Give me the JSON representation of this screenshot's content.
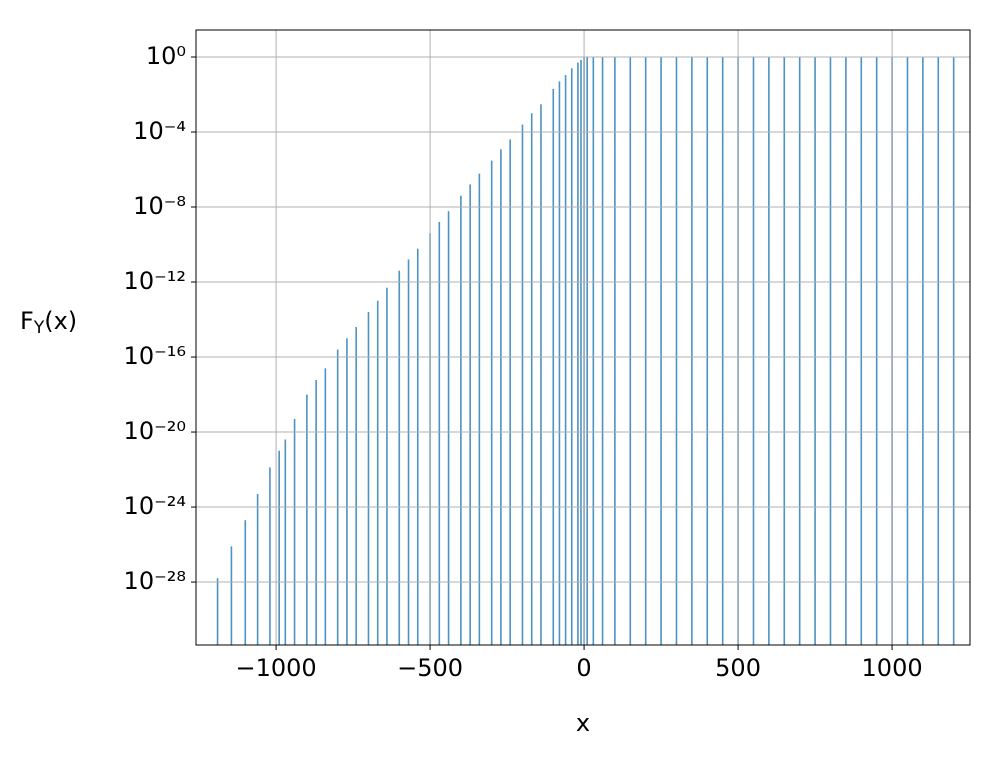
{
  "chart_data": {
    "type": "bar",
    "ylabel": {
      "base": "F",
      "sub": "Y",
      "rest": "(x)"
    },
    "xlabel": "x",
    "log_y": true,
    "grid": true,
    "color": "#1f77b4",
    "x": [
      -1190,
      -1145,
      -1100,
      -1060,
      -1020,
      -990,
      -970,
      -940,
      -900,
      -870,
      -840,
      -800,
      -770,
      -740,
      -700,
      -670,
      -640,
      -600,
      -570,
      -540,
      -500,
      -470,
      -440,
      -400,
      -370,
      -340,
      -300,
      -270,
      -240,
      -200,
      -170,
      -140,
      -100,
      -80,
      -60,
      -40,
      -20,
      -10,
      0,
      10,
      30,
      60,
      100,
      150,
      200,
      250,
      300,
      350,
      400,
      450,
      500,
      550,
      600,
      650,
      700,
      750,
      800,
      850,
      900,
      950,
      1000,
      1050,
      1100,
      1150,
      1200
    ],
    "values": [
      1.6e-28,
      8e-27,
      2e-25,
      5e-24,
      1.3e-22,
      1e-21,
      4e-21,
      5e-20,
      1e-18,
      6e-18,
      2.5e-17,
      2.5e-16,
      1e-15,
      4e-15,
      2.5e-14,
      1e-13,
      5e-13,
      4e-12,
      1.6e-11,
      6e-11,
      4e-10,
      1.6e-09,
      6e-09,
      4e-08,
      1.6e-07,
      6e-07,
      3e-06,
      1.2e-05,
      4e-05,
      0.00025,
      0.001,
      0.003,
      0.02,
      0.05,
      0.11,
      0.25,
      0.5,
      0.7,
      0.95,
      1,
      1,
      1,
      1,
      1,
      1,
      1,
      1,
      1,
      1,
      1,
      1,
      1,
      1,
      1,
      1,
      1,
      1,
      1,
      1,
      1,
      1,
      1,
      1,
      1,
      1
    ],
    "xlim": [
      -1260,
      1253
    ],
    "ylim": [
      4.4e-32,
      27.5
    ],
    "xticks": [
      {
        "value": -1000,
        "label": "−1000"
      },
      {
        "value": -500,
        "label": "−500"
      },
      0,
      500,
      1000
    ],
    "yticks": [
      {
        "value": 1,
        "label": "10⁰"
      },
      {
        "value": 0.0001,
        "label": "10⁻⁴"
      },
      {
        "value": 1e-08,
        "label": "10⁻⁸"
      },
      {
        "value": 1e-12,
        "label": "10⁻¹²"
      },
      {
        "value": 1e-16,
        "label": "10⁻¹⁶"
      },
      {
        "value": 1e-20,
        "label": "10⁻²⁰"
      },
      {
        "value": 1e-24,
        "label": "10⁻²⁴"
      },
      {
        "value": 1e-28,
        "label": "10⁻²⁸"
      }
    ]
  }
}
